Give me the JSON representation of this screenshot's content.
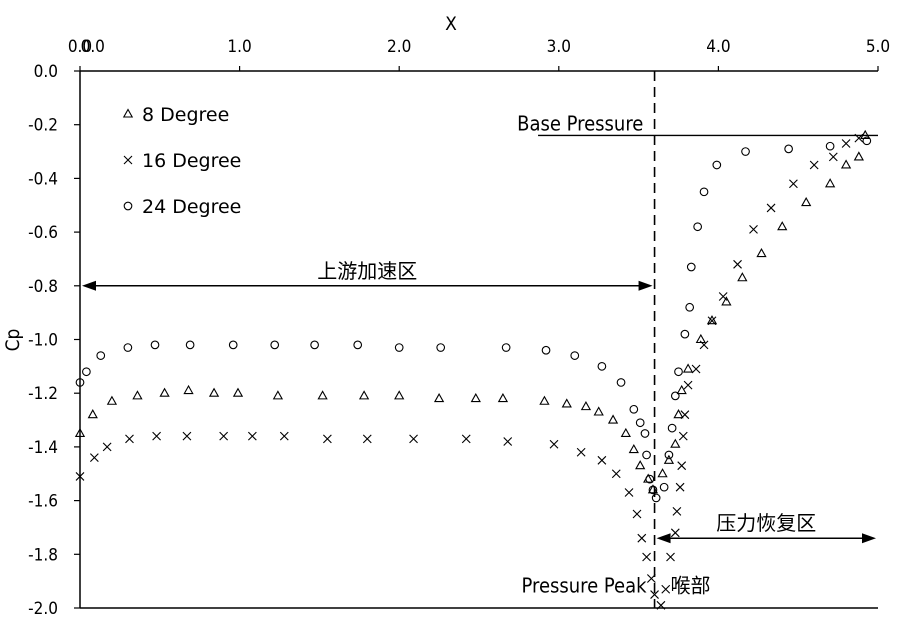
{
  "chart_data": {
    "type": "scatter",
    "xlabel": "X",
    "ylabel": "Cp",
    "xlim": [
      0,
      5
    ],
    "ylim": [
      -2.0,
      0.0
    ],
    "xticks": [
      "0.0",
      "1.0",
      "2.0",
      "3.0",
      "4.0",
      "5.0"
    ],
    "xtick_values": [
      0,
      1,
      2,
      3,
      4,
      5
    ],
    "extra_x_tick": {
      "label": "0.0",
      "value": 0.08
    },
    "yticks": [
      "0.0",
      "-0.2",
      "-0.4",
      "-0.6",
      "-0.8",
      "-1.0",
      "-1.2",
      "-1.4",
      "-1.6",
      "-1.8",
      "-2.0"
    ],
    "ytick_values": [
      0.0,
      -0.2,
      -0.4,
      -0.6,
      -0.8,
      -1.0,
      -1.2,
      -1.4,
      -1.6,
      -1.8,
      -2.0
    ],
    "x_axis_position": "top",
    "legend_position": "top-left",
    "grid": false,
    "series": [
      {
        "name": "8 Degree",
        "marker": "triangle",
        "points": [
          [
            0.0,
            -1.35
          ],
          [
            0.08,
            -1.28
          ],
          [
            0.2,
            -1.23
          ],
          [
            0.36,
            -1.21
          ],
          [
            0.53,
            -1.2
          ],
          [
            0.68,
            -1.19
          ],
          [
            0.84,
            -1.2
          ],
          [
            0.99,
            -1.2
          ],
          [
            1.24,
            -1.21
          ],
          [
            1.52,
            -1.21
          ],
          [
            1.78,
            -1.21
          ],
          [
            2.0,
            -1.21
          ],
          [
            2.25,
            -1.22
          ],
          [
            2.48,
            -1.22
          ],
          [
            2.65,
            -1.22
          ],
          [
            2.91,
            -1.23
          ],
          [
            3.05,
            -1.24
          ],
          [
            3.17,
            -1.25
          ],
          [
            3.25,
            -1.27
          ],
          [
            3.34,
            -1.3
          ],
          [
            3.42,
            -1.35
          ],
          [
            3.47,
            -1.41
          ],
          [
            3.51,
            -1.47
          ],
          [
            3.56,
            -1.52
          ],
          [
            3.59,
            -1.56
          ],
          [
            3.65,
            -1.5
          ],
          [
            3.69,
            -1.45
          ],
          [
            3.73,
            -1.39
          ],
          [
            3.75,
            -1.28
          ],
          [
            3.77,
            -1.19
          ],
          [
            3.81,
            -1.11
          ],
          [
            3.89,
            -1.0
          ],
          [
            3.96,
            -0.93
          ],
          [
            4.05,
            -0.86
          ],
          [
            4.15,
            -0.77
          ],
          [
            4.27,
            -0.68
          ],
          [
            4.4,
            -0.58
          ],
          [
            4.55,
            -0.49
          ],
          [
            4.7,
            -0.42
          ],
          [
            4.8,
            -0.35
          ],
          [
            4.88,
            -0.32
          ],
          [
            4.92,
            -0.24
          ]
        ]
      },
      {
        "name": "16 Degree",
        "marker": "cross",
        "points": [
          [
            0.0,
            -1.51
          ],
          [
            0.09,
            -1.44
          ],
          [
            0.17,
            -1.4
          ],
          [
            0.31,
            -1.37
          ],
          [
            0.48,
            -1.36
          ],
          [
            0.67,
            -1.36
          ],
          [
            0.9,
            -1.36
          ],
          [
            1.08,
            -1.36
          ],
          [
            1.28,
            -1.36
          ],
          [
            1.55,
            -1.37
          ],
          [
            1.8,
            -1.37
          ],
          [
            2.09,
            -1.37
          ],
          [
            2.42,
            -1.37
          ],
          [
            2.68,
            -1.38
          ],
          [
            2.97,
            -1.39
          ],
          [
            3.14,
            -1.42
          ],
          [
            3.27,
            -1.45
          ],
          [
            3.36,
            -1.5
          ],
          [
            3.44,
            -1.57
          ],
          [
            3.49,
            -1.65
          ],
          [
            3.52,
            -1.74
          ],
          [
            3.55,
            -1.81
          ],
          [
            3.58,
            -1.89
          ],
          [
            3.6,
            -1.95
          ],
          [
            3.64,
            -1.99
          ],
          [
            3.67,
            -1.93
          ],
          [
            3.7,
            -1.81
          ],
          [
            3.73,
            -1.72
          ],
          [
            3.74,
            -1.64
          ],
          [
            3.76,
            -1.55
          ],
          [
            3.77,
            -1.47
          ],
          [
            3.78,
            -1.36
          ],
          [
            3.79,
            -1.28
          ],
          [
            3.81,
            -1.17
          ],
          [
            3.86,
            -1.11
          ],
          [
            3.91,
            -1.02
          ],
          [
            3.96,
            -0.93
          ],
          [
            4.03,
            -0.84
          ],
          [
            4.12,
            -0.72
          ],
          [
            4.22,
            -0.59
          ],
          [
            4.33,
            -0.51
          ],
          [
            4.47,
            -0.42
          ],
          [
            4.6,
            -0.35
          ],
          [
            4.72,
            -0.32
          ],
          [
            4.8,
            -0.27
          ],
          [
            4.88,
            -0.25
          ]
        ]
      },
      {
        "name": "24 Degree",
        "marker": "circle",
        "points": [
          [
            0.0,
            -1.16
          ],
          [
            0.04,
            -1.12
          ],
          [
            0.13,
            -1.06
          ],
          [
            0.3,
            -1.03
          ],
          [
            0.47,
            -1.02
          ],
          [
            0.69,
            -1.02
          ],
          [
            0.96,
            -1.02
          ],
          [
            1.22,
            -1.02
          ],
          [
            1.47,
            -1.02
          ],
          [
            1.74,
            -1.02
          ],
          [
            2.0,
            -1.03
          ],
          [
            2.26,
            -1.03
          ],
          [
            2.67,
            -1.03
          ],
          [
            2.92,
            -1.04
          ],
          [
            3.1,
            -1.06
          ],
          [
            3.27,
            -1.1
          ],
          [
            3.39,
            -1.16
          ],
          [
            3.47,
            -1.26
          ],
          [
            3.51,
            -1.31
          ],
          [
            3.54,
            -1.35
          ],
          [
            3.55,
            -1.43
          ],
          [
            3.57,
            -1.52
          ],
          [
            3.59,
            -1.56
          ],
          [
            3.61,
            -1.59
          ],
          [
            3.66,
            -1.55
          ],
          [
            3.69,
            -1.43
          ],
          [
            3.71,
            -1.33
          ],
          [
            3.73,
            -1.21
          ],
          [
            3.75,
            -1.12
          ],
          [
            3.79,
            -0.98
          ],
          [
            3.82,
            -0.88
          ],
          [
            3.83,
            -0.73
          ],
          [
            3.87,
            -0.58
          ],
          [
            3.91,
            -0.45
          ],
          [
            3.99,
            -0.35
          ],
          [
            4.17,
            -0.3
          ],
          [
            4.44,
            -0.29
          ],
          [
            4.7,
            -0.28
          ],
          [
            4.93,
            -0.26
          ]
        ]
      }
    ],
    "reference_lines": {
      "vertical_dashed_x": 3.6,
      "base_pressure": {
        "label": "Base Pressure",
        "y": -0.24,
        "x_from": 2.87,
        "x_to": 5.0
      }
    },
    "annotations": [
      {
        "text": "上游加速区",
        "type": "double_arrow",
        "y": -0.8,
        "x_from": 0.0,
        "x_to": 3.6
      },
      {
        "text": "压力恢复区",
        "type": "double_arrow",
        "y": -1.74,
        "x_from": 3.6,
        "x_to": 5.0
      },
      {
        "text": "Pressure Peak",
        "x": 3.55,
        "y": -1.92,
        "anchor": "end"
      },
      {
        "text": "喉部",
        "x": 3.7,
        "y": -1.92,
        "anchor": "start"
      }
    ]
  }
}
